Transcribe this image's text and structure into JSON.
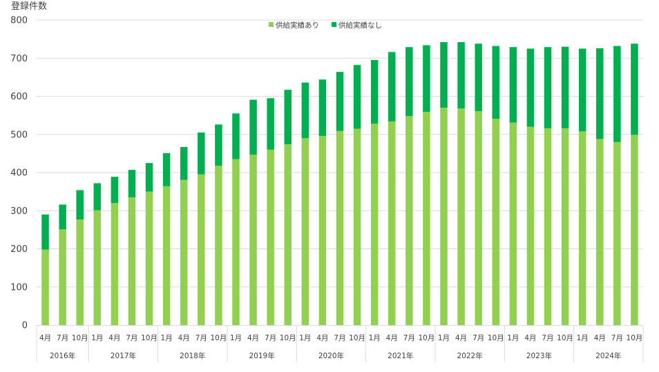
{
  "chart_data": {
    "type": "bar",
    "stacked": true,
    "title": "",
    "ylabel": "登録件数",
    "xlabel": "",
    "ylim": [
      0,
      800
    ],
    "yticks": [
      0,
      100,
      200,
      300,
      400,
      500,
      600,
      700,
      800
    ],
    "grid": true,
    "legend_position": "top-center",
    "years": [
      {
        "label": "2016年",
        "months": [
          "4月",
          "7月",
          "10月"
        ]
      },
      {
        "label": "2017年",
        "months": [
          "1月",
          "4月",
          "7月",
          "10月"
        ]
      },
      {
        "label": "2018年",
        "months": [
          "1月",
          "4月",
          "7月",
          "10月"
        ]
      },
      {
        "label": "2019年",
        "months": [
          "1月",
          "4月",
          "7月",
          "10月"
        ]
      },
      {
        "label": "2020年",
        "months": [
          "1月",
          "4月",
          "7月",
          "10月"
        ]
      },
      {
        "label": "2021年",
        "months": [
          "1月",
          "4月",
          "7月",
          "10月"
        ]
      },
      {
        "label": "2022年",
        "months": [
          "1月",
          "4月",
          "7月",
          "10月"
        ]
      },
      {
        "label": "2023年",
        "months": [
          "1月",
          "4月",
          "7月",
          "10月"
        ]
      },
      {
        "label": "2024年",
        "months": [
          "1月",
          "4月",
          "7月",
          "10月"
        ]
      }
    ],
    "categories": [
      "2016年4月",
      "2016年7月",
      "2016年10月",
      "2017年1月",
      "2017年4月",
      "2017年7月",
      "2017年10月",
      "2018年1月",
      "2018年4月",
      "2018年7月",
      "2018年10月",
      "2019年1月",
      "2019年4月",
      "2019年7月",
      "2019年10月",
      "2020年1月",
      "2020年4月",
      "2020年7月",
      "2020年10月",
      "2021年1月",
      "2021年4月",
      "2021年7月",
      "2021年10月",
      "2022年1月",
      "2022年4月",
      "2022年7月",
      "2022年10月",
      "2023年1月",
      "2023年4月",
      "2023年7月",
      "2023年10月",
      "2024年1月",
      "2024年4月",
      "2024年7月",
      "2024年10月"
    ],
    "series": [
      {
        "name": "供給実績あり",
        "color": "#92d050",
        "values": [
          198,
          251,
          277,
          301,
          320,
          335,
          350,
          364,
          381,
          395,
          418,
          435,
          447,
          460,
          474,
          490,
          496,
          509,
          515,
          528,
          534,
          548,
          559,
          570,
          568,
          561,
          541,
          531,
          520,
          516,
          516,
          508,
          488,
          480,
          499
        ]
      },
      {
        "name": "供給実績なし",
        "color": "#00b050",
        "values": [
          92,
          65,
          77,
          71,
          69,
          72,
          75,
          87,
          86,
          110,
          108,
          120,
          144,
          135,
          143,
          146,
          148,
          155,
          167,
          167,
          182,
          181,
          175,
          172,
          174,
          177,
          191,
          198,
          205,
          213,
          214,
          217,
          238,
          252,
          239
        ]
      }
    ],
    "totals": [
      290,
      316,
      354,
      372,
      389,
      407,
      425,
      451,
      467,
      505,
      526,
      555,
      591,
      595,
      617,
      636,
      644,
      664,
      682,
      695,
      716,
      729,
      734,
      742,
      742,
      738,
      732,
      729,
      725,
      729,
      730,
      725,
      726,
      732,
      738
    ]
  }
}
